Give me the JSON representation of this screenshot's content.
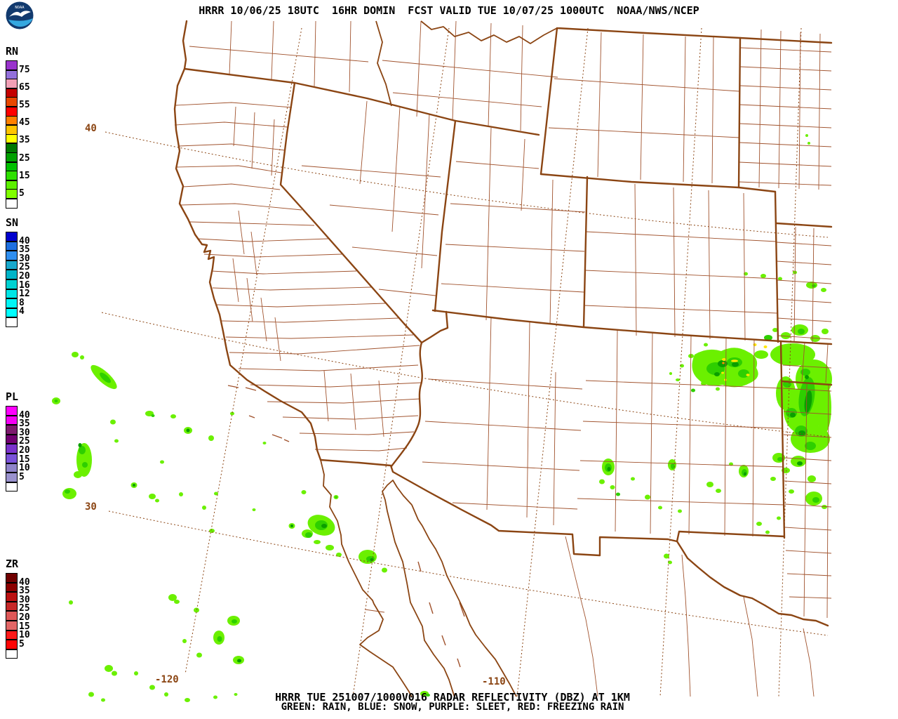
{
  "header": {
    "title": "HRRR 10/06/25 18UTC  16HR DOMIN  FCST VALID TUE 10/07/25 1000UTC  NOAA/NWS/NCEP"
  },
  "logo": {
    "text": "NOAA"
  },
  "colorbars": [
    {
      "label": "RN",
      "boxes": [
        {
          "color": "#9933CC",
          "tick": "75"
        },
        {
          "color": "#9370DB"
        },
        {
          "color": "#F2A0B6",
          "tick": "65"
        },
        {
          "color": "#C40000"
        },
        {
          "color": "#E84800",
          "tick": "55"
        },
        {
          "color": "#FF0000"
        },
        {
          "color": "#FF8000",
          "tick": "45"
        },
        {
          "color": "#FFC400"
        },
        {
          "color": "#FFFF00",
          "tick": "35"
        },
        {
          "color": "#007800"
        },
        {
          "color": "#00A000",
          "tick": "25"
        },
        {
          "color": "#00C000"
        },
        {
          "color": "#2EE000",
          "tick": "15"
        },
        {
          "color": "#5CF000"
        },
        {
          "color": "#80FF00",
          "tick": "5"
        },
        {
          "color": "#FFFFFF"
        }
      ]
    },
    {
      "label": "SN",
      "boxes": [
        {
          "color": "#0000CD",
          "tick": "40"
        },
        {
          "color": "#1E6FE0",
          "tick": "35"
        },
        {
          "color": "#2F8FF0",
          "tick": "30"
        },
        {
          "color": "#18A8CC",
          "tick": "25"
        },
        {
          "color": "#00B4C8",
          "tick": "20"
        },
        {
          "color": "#00D2D2",
          "tick": "16"
        },
        {
          "color": "#00E6E6",
          "tick": "12"
        },
        {
          "color": "#00F5F5",
          "tick": "8"
        },
        {
          "color": "#00FFFF",
          "tick": "4"
        },
        {
          "color": "#FFFFFF"
        }
      ]
    },
    {
      "label": "PL",
      "boxes": [
        {
          "color": "#FF00FF",
          "tick": "40"
        },
        {
          "color": "#F400F4",
          "tick": "35"
        },
        {
          "color": "#7D1A6E",
          "tick": "30"
        },
        {
          "color": "#720072",
          "tick": "25"
        },
        {
          "color": "#7B33CC",
          "tick": "20"
        },
        {
          "color": "#7A52D9",
          "tick": "15"
        },
        {
          "color": "#8F84C9",
          "tick": "10"
        },
        {
          "color": "#9A92CE",
          "tick": "5"
        },
        {
          "color": "#FFFFFF"
        }
      ]
    },
    {
      "label": "ZR",
      "boxes": [
        {
          "color": "#700000",
          "tick": "40"
        },
        {
          "color": "#8B0000",
          "tick": "35"
        },
        {
          "color": "#BB1111",
          "tick": "30"
        },
        {
          "color": "#C62828",
          "tick": "25"
        },
        {
          "color": "#DE5858",
          "tick": "20"
        },
        {
          "color": "#E26666",
          "tick": "15"
        },
        {
          "color": "#FF1A1A",
          "tick": "10"
        },
        {
          "color": "#FF0505",
          "tick": "5"
        },
        {
          "color": "#FFFFFF"
        }
      ]
    }
  ],
  "map": {
    "lat_labels": [
      {
        "text": "40"
      },
      {
        "text": "30"
      }
    ],
    "lon_labels": [
      {
        "text": "-120"
      },
      {
        "text": "-110"
      }
    ]
  },
  "footer": {
    "line1": "HRRR TUE 251007/1000V016 RADAR REFLECTIVITY (DBZ) AT 1KM",
    "line2": "GREEN: RAIN, BLUE: SNOW, PURPLE: SLEET, RED: FREEZING RAIN"
  },
  "echo_colors": {
    "light": "#6BF000",
    "medium": "#2ECF00",
    "dark": "#0A9E00",
    "yellow": "#FFE800",
    "orange": "#FF9000"
  },
  "line_colors": {
    "county": "#A0522D",
    "state": "#8B4513"
  }
}
